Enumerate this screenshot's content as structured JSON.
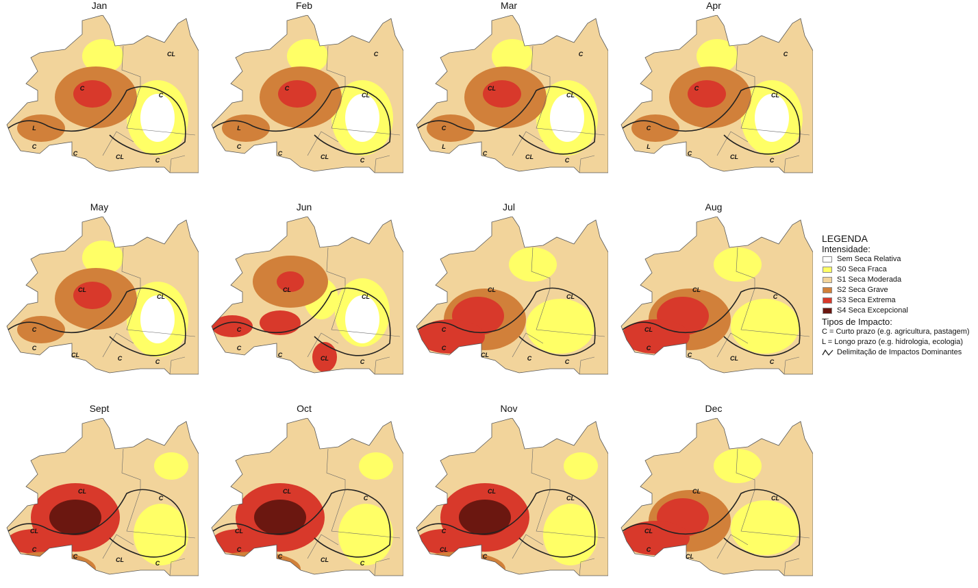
{
  "months": [
    {
      "name": "Jan",
      "labels": [
        "C",
        "C",
        "L",
        "C",
        "C",
        "CL",
        "C",
        "CL"
      ],
      "severity": 1
    },
    {
      "name": "Feb",
      "labels": [
        "C",
        "CL",
        "L",
        "C",
        "C",
        "CL",
        "C",
        "C"
      ],
      "severity": 1
    },
    {
      "name": "Mar",
      "labels": [
        "CL",
        "CL",
        "C",
        "L",
        "C",
        "CL",
        "C",
        "C"
      ],
      "severity": 1
    },
    {
      "name": "Apr",
      "labels": [
        "C",
        "CL",
        "C",
        "L",
        "C",
        "CL",
        "C",
        "C"
      ],
      "severity": 1
    },
    {
      "name": "May",
      "labels": [
        "CL",
        "CL",
        "C",
        "C",
        "CL",
        "C",
        "C"
      ],
      "severity": 1
    },
    {
      "name": "Jun",
      "labels": [
        "CL",
        "CL",
        "C",
        "C",
        "C",
        "CL",
        "C"
      ],
      "severity": 0
    },
    {
      "name": "Jul",
      "labels": [
        "CL",
        "CL",
        "C",
        "C",
        "CL",
        "C",
        "C"
      ],
      "severity": 2
    },
    {
      "name": "Aug",
      "labels": [
        "CL",
        "C",
        "CL",
        "C",
        "C",
        "CL",
        "C"
      ],
      "severity": 2
    },
    {
      "name": "Sept",
      "labels": [
        "CL",
        "C",
        "CL",
        "C",
        "C",
        "CL",
        "C"
      ],
      "severity": 3
    },
    {
      "name": "Oct",
      "labels": [
        "CL",
        "C",
        "CL",
        "C",
        "C",
        "CL",
        "C"
      ],
      "severity": 3
    },
    {
      "name": "Nov",
      "labels": [
        "CL",
        "CL",
        "C",
        "CL",
        "C"
      ],
      "severity": 3
    },
    {
      "name": "Dec",
      "labels": [
        "CL",
        "CL",
        "CL",
        "C",
        "CL"
      ],
      "severity": 2
    }
  ],
  "legend": {
    "title": "LEGENDA",
    "intensity_title": "Intensidade:",
    "classes": [
      {
        "label": "Sem Seca Relativa",
        "color": "#ffffff"
      },
      {
        "label": "S0 Seca Fraca",
        "color": "#ffff66"
      },
      {
        "label": "S1 Seca Moderada",
        "color": "#f2d49b"
      },
      {
        "label": "S2 Seca Grave",
        "color": "#d1803a"
      },
      {
        "label": "S3 Seca Extrema",
        "color": "#d8392b"
      },
      {
        "label": "S4 Seca Excepcional",
        "color": "#6b1710"
      }
    ],
    "impact_title": "Tipos de Impacto:",
    "impact_c": "C = Curto prazo (e.g. agricultura, pastagem)",
    "impact_l": "L = Longo prazo (e.g. hidrologia, ecologia)",
    "delimitation": "Delimitação de Impactos Dominantes"
  }
}
